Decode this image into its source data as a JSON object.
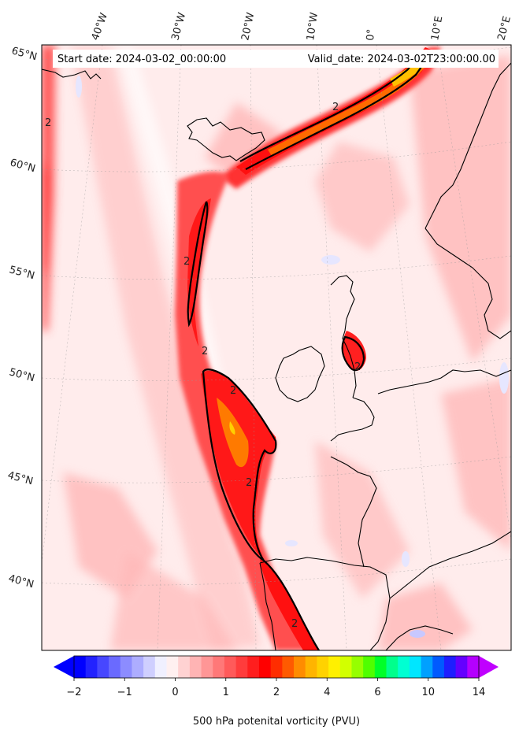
{
  "header": {
    "start_date": "Start date: 2024-03-02_00:00:00",
    "valid_date": "Valid_date: 2024-03-02T23:00:00.00"
  },
  "lon_labels": [
    "40°W",
    "30°W",
    "20°W",
    "10°W",
    "0°",
    "10°E",
    "20°E"
  ],
  "lat_labels": [
    "65°N",
    "60°N",
    "55°N",
    "50°N",
    "45°N",
    "40°N"
  ],
  "contour_labels": [
    "2",
    "2",
    "2",
    "2",
    "2",
    "2",
    "2",
    "2"
  ],
  "colorbar": {
    "title": "500 hPa potenital vorticity (PVU)",
    "tick_labels": [
      "−2",
      "−1",
      "0",
      "1",
      "2",
      "4",
      "6",
      "10",
      "14"
    ],
    "colors": [
      "#0000ff",
      "#2222ff",
      "#4747ff",
      "#6a6aff",
      "#8c8cff",
      "#adadff",
      "#cfcfff",
      "#f0f0ff",
      "#fff0f0",
      "#ffd2d2",
      "#ffb4b4",
      "#ff9696",
      "#ff7878",
      "#ff5a5a",
      "#ff3c3c",
      "#ff1e1e",
      "#ff0000",
      "#ff2d00",
      "#ff5a00",
      "#ff8c00",
      "#ffb400",
      "#ffd200",
      "#fff000",
      "#d2ff00",
      "#96ff00",
      "#50ff00",
      "#00ff28",
      "#00ff8c",
      "#00ffd2",
      "#00e6ff",
      "#00a0ff",
      "#005aff",
      "#1e1eff",
      "#6400ff",
      "#b400ff"
    ],
    "under_color": "#0000ff",
    "over_color": "#c000ff"
  }
}
